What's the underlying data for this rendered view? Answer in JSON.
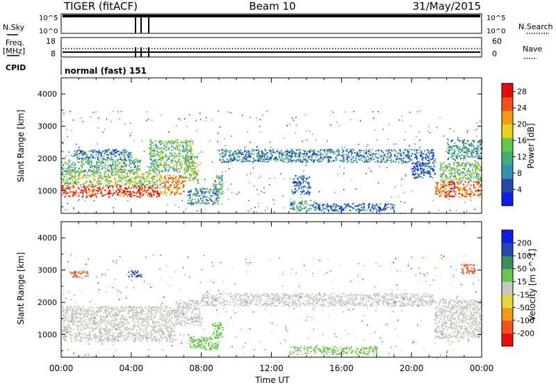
{
  "header": {
    "station": "TIGER (fitACF)",
    "beam": "Beam 10",
    "date": "31/May/2015"
  },
  "status_panels": {
    "nsky_label": "N.Sky",
    "nsky_ticks": [
      "10^5",
      "10^0"
    ],
    "nsearch_label": "N.Search",
    "nsearch_ticks": [
      "10^5",
      "10^0"
    ],
    "freq_label": "Freq.",
    "freq_unit": "[MHz]",
    "freq_ticks": [
      "18",
      "8"
    ],
    "nave_label": "Nave",
    "nave_ticks": [
      "60",
      "0"
    ],
    "cpid_label": "CPID",
    "cpid_value": "normal (fast) 151"
  },
  "x_axis": {
    "title": "Time UT",
    "ticks": [
      "00:00",
      "04:00",
      "08:00",
      "12:00",
      "16:00",
      "20:00",
      "00:00"
    ]
  },
  "chart_data": [
    {
      "type": "heatmap",
      "panel": "power",
      "x_label": "Time UT",
      "y_label": "Slant Range [km]",
      "x_range_hours": [
        0,
        24
      ],
      "y_range_km": [
        300,
        4500
      ],
      "y_ticks": [
        "1000",
        "2000",
        "3000",
        "4000"
      ],
      "colorbar": {
        "label": "Power [dB]",
        "ticks": [
          "4",
          "8",
          "12",
          "16",
          "20",
          "24",
          "28"
        ],
        "range": [
          0,
          30
        ],
        "colors": [
          "#0a1ee6",
          "#2848a8",
          "#3a8fb7",
          "#3fae7a",
          "#66c84a",
          "#e3d320",
          "#f09a18",
          "#f0521e",
          "#e40c0c"
        ]
      },
      "bands": [
        {
          "t0": 0.0,
          "t1": 5.6,
          "r0": 820,
          "r1": 1180,
          "level": 27
        },
        {
          "t0": 0.0,
          "t1": 5.6,
          "r0": 1180,
          "r1": 1600,
          "level": 16
        },
        {
          "t0": 0.0,
          "t1": 4.5,
          "r0": 1600,
          "r1": 2000,
          "level": 12
        },
        {
          "t0": 0.6,
          "t1": 4.0,
          "r0": 2000,
          "r1": 2300,
          "level": 8
        },
        {
          "t0": 5.6,
          "t1": 7.0,
          "r0": 900,
          "r1": 1500,
          "level": 22
        },
        {
          "t0": 7.0,
          "t1": 7.8,
          "r0": 1300,
          "r1": 2100,
          "level": 17
        },
        {
          "t0": 5.0,
          "t1": 7.5,
          "r0": 1600,
          "r1": 2600,
          "level": 13
        },
        {
          "t0": 7.2,
          "t1": 9.0,
          "r0": 600,
          "r1": 1100,
          "level": 9
        },
        {
          "t0": 8.6,
          "t1": 9.2,
          "r0": 900,
          "r1": 1500,
          "level": 12
        },
        {
          "t0": 9.0,
          "t1": 20.0,
          "r0": 1900,
          "r1": 2300,
          "level": 8
        },
        {
          "t0": 13.0,
          "t1": 14.6,
          "r0": 400,
          "r1": 700,
          "level": 11
        },
        {
          "t0": 14.6,
          "t1": 19.0,
          "r0": 380,
          "r1": 620,
          "level": 6
        },
        {
          "t0": 13.2,
          "t1": 14.2,
          "r0": 900,
          "r1": 1500,
          "level": 6
        },
        {
          "t0": 20.0,
          "t1": 21.3,
          "r0": 1400,
          "r1": 2300,
          "level": 6
        },
        {
          "t0": 21.3,
          "t1": 24.0,
          "r0": 820,
          "r1": 1300,
          "level": 24
        },
        {
          "t0": 21.6,
          "t1": 24.0,
          "r0": 1300,
          "r1": 1900,
          "level": 14
        },
        {
          "t0": 22.0,
          "t1": 24.0,
          "r0": 2000,
          "r1": 2600,
          "level": 10
        }
      ]
    },
    {
      "type": "heatmap",
      "panel": "velocity",
      "x_label": "Time UT",
      "y_label": "Slant Range [km]",
      "x_range_hours": [
        0,
        24
      ],
      "y_range_km": [
        300,
        4500
      ],
      "y_ticks": [
        "1000",
        "2000",
        "3000",
        "4000"
      ],
      "colorbar": {
        "label": "Velocity [m s^-1]",
        "ticks": [
          "200",
          "100",
          "50",
          "15",
          "-15",
          "-50",
          "-100",
          "-200"
        ],
        "range": [
          -250,
          250
        ],
        "colors": [
          "#e80c0c",
          "#f0521e",
          "#f09a18",
          "#e8d640",
          "#c8c8c0",
          "#66c84a",
          "#3a8f5a",
          "#2848a8",
          "#0a1ee6"
        ]
      },
      "bands": [
        {
          "t0": 0.0,
          "t1": 6.5,
          "r0": 800,
          "r1": 1900,
          "level": 0
        },
        {
          "t0": 6.5,
          "t1": 8.0,
          "r0": 1300,
          "r1": 2100,
          "level": 0
        },
        {
          "t0": 8.0,
          "t1": 21.3,
          "r0": 1900,
          "r1": 2300,
          "level": 0
        },
        {
          "t0": 21.3,
          "t1": 24.0,
          "r0": 900,
          "r1": 2100,
          "level": 0
        },
        {
          "t0": 7.3,
          "t1": 9.0,
          "r0": 550,
          "r1": 950,
          "level": 60
        },
        {
          "t0": 8.6,
          "t1": 9.2,
          "r0": 900,
          "r1": 1400,
          "level": 60
        },
        {
          "t0": 13.0,
          "t1": 18.0,
          "r0": 400,
          "r1": 650,
          "level": 40
        },
        {
          "t0": 0.5,
          "t1": 1.5,
          "r0": 2800,
          "r1": 3000,
          "level": -160
        },
        {
          "t0": 22.8,
          "t1": 23.6,
          "r0": 2900,
          "r1": 3200,
          "level": -160
        },
        {
          "t0": 3.8,
          "t1": 4.6,
          "r0": 2800,
          "r1": 3000,
          "level": 160
        }
      ]
    }
  ]
}
